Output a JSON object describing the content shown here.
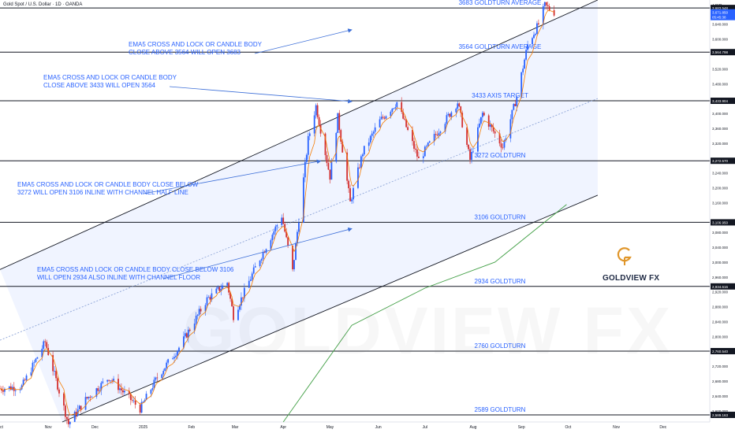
{
  "header": {
    "title": "Gold Spot / U.S. Dollar · 1D · OANDA",
    "currency": "USD"
  },
  "watermark": "GOLDVIEW FX",
  "logo": {
    "text": "GOLDVIEW FX",
    "color": "#e0962a"
  },
  "chart_data": {
    "type": "line",
    "title": "Gold Spot / U.S. Dollar · 1D · OANDA",
    "ylabel": "USD",
    "ylim": [
      2570,
      3705
    ],
    "xlim": [
      "2024-10-01",
      "2025-12-31"
    ],
    "x_ticks": [
      {
        "date": "2024-10-01",
        "label": "Oct"
      },
      {
        "date": "2024-11-01",
        "label": "Nov"
      },
      {
        "date": "2024-12-01",
        "label": "Dec"
      },
      {
        "date": "2025-01-01",
        "label": "2025"
      },
      {
        "date": "2025-02-01",
        "label": "Feb"
      },
      {
        "date": "2025-03-01",
        "label": "Mar"
      },
      {
        "date": "2025-04-01",
        "label": "Apr"
      },
      {
        "date": "2025-05-01",
        "label": "May"
      },
      {
        "date": "2025-06-01",
        "label": "Jun"
      },
      {
        "date": "2025-07-01",
        "label": "Jul"
      },
      {
        "date": "2025-08-01",
        "label": "Aug"
      },
      {
        "date": "2025-09-01",
        "label": "Sep"
      },
      {
        "date": "2025-10-01",
        "label": "Oct"
      },
      {
        "date": "2025-11-01",
        "label": "Nov"
      },
      {
        "date": "2025-12-01",
        "label": "Dec"
      }
    ],
    "y_ticks": [
      {
        "value": 2600,
        "label": "2,600.000"
      },
      {
        "value": 2640,
        "label": "2,640.000"
      },
      {
        "value": 2680,
        "label": "2,680.000"
      },
      {
        "value": 2720,
        "label": "2,720.000"
      },
      {
        "value": 2800,
        "label": "2,800.000"
      },
      {
        "value": 2840,
        "label": "2,840.000"
      },
      {
        "value": 2880,
        "label": "2,880.000"
      },
      {
        "value": 2920,
        "label": "2,920.000"
      },
      {
        "value": 2960,
        "label": "2,960.000"
      },
      {
        "value": 3000,
        "label": "3,000.000"
      },
      {
        "value": 3040,
        "label": "3,040.000"
      },
      {
        "value": 3080,
        "label": "3,080.000"
      },
      {
        "value": 3160,
        "label": "3,160.000"
      },
      {
        "value": 3200,
        "label": "3,200.000"
      },
      {
        "value": 3240,
        "label": "3,240.000"
      },
      {
        "value": 3320,
        "label": "3,320.000"
      },
      {
        "value": 3360,
        "label": "3,360.000"
      },
      {
        "value": 3400,
        "label": "3,400.000"
      },
      {
        "value": 3480,
        "label": "3,480.000"
      },
      {
        "value": 3520,
        "label": "3,520.000"
      },
      {
        "value": 3600,
        "label": "3,600.000"
      },
      {
        "value": 3640,
        "label": "3,640.000"
      }
    ],
    "levels": [
      {
        "value": 3683.548,
        "axis_label": "3,683.548",
        "name": "3683 GOLDTURN AVERAGE"
      },
      {
        "value": 3564.798,
        "axis_label": "3,564.798",
        "name": "3564 GOLDTURN AVERAGE"
      },
      {
        "value": 3433.904,
        "axis_label": "3,433.904",
        "name": "3433 AXIS TARGET"
      },
      {
        "value": 3272.57,
        "axis_label": "3,272.570",
        "name": "3272 GOLDTURN"
      },
      {
        "value": 3106.95,
        "axis_label": "3,106.950",
        "name": "3106 GOLDTURN"
      },
      {
        "value": 2934.616,
        "axis_label": "2,934.616",
        "name": "2934 GOLDTURN"
      },
      {
        "value": 2760.54,
        "axis_label": "2,760.540",
        "name": "2760 GOLDTURN"
      },
      {
        "value": 2589.163,
        "axis_label": "2,589.163",
        "name": "2589 GOLDTURN"
      }
    ],
    "last_price": {
      "value": 3671.85,
      "label": "3,671.850",
      "countdown": "05:45:38",
      "color": "#2962ff"
    },
    "annotations": [
      {
        "text": [
          "EMA5 CROSS AND LOCK OR CANDLE BODY",
          "CLOSE ABOVE 3564 WILL OPEN 3683"
        ],
        "arrow_to": {
          "date": "2025-05-15",
          "value": 3625
        }
      },
      {
        "text": [
          "EMA5 CROSS AND LOCK OR CANDLE BODY",
          "CLOSE ABOVE 3433 WILL OPEN 3564"
        ],
        "arrow_to": {
          "date": "2025-05-15",
          "value": 3432
        }
      },
      {
        "text": [
          "EMA5 CROSS AND LOCK OR CANDLE BODY CLOSE BELOW",
          "3272 WILL OPEN 3106 INLINE WITH CHANNEL HALF LINE"
        ],
        "arrow_to": {
          "date": "2025-04-25",
          "value": 3272
        }
      },
      {
        "text": [
          "EMA5 CROSS AND LOCK OR CANDLE BODY CLOSE BELOW 3106",
          "WILL OPEN 2934 ALSO INLINE WITH CHANNEL FLOOR"
        ],
        "arrow_to": {
          "date": "2025-05-15",
          "value": 3090
        }
      }
    ],
    "channel": {
      "upper": [
        {
          "date": "2024-10-01",
          "value": 2980
        },
        {
          "date": "2025-10-20",
          "value": 3705
        }
      ],
      "mid": [
        {
          "date": "2024-10-01",
          "value": 2790
        },
        {
          "date": "2025-10-20",
          "value": 3440
        }
      ],
      "lower": [
        {
          "date": "2024-11-10",
          "value": 2570
        },
        {
          "date": "2025-10-20",
          "value": 3180
        }
      ]
    },
    "candle_colors": {
      "up": "#2962ff",
      "down": "#d32f2f"
    },
    "ema_color": "#f57c00",
    "sma_color": "#43a047",
    "close_series": [
      {
        "date": "2024-10-01",
        "close": 2660
      },
      {
        "date": "2024-10-15",
        "close": 2665
      },
      {
        "date": "2024-10-30",
        "close": 2785
      },
      {
        "date": "2024-11-14",
        "close": 2565
      },
      {
        "date": "2024-11-25",
        "close": 2630
      },
      {
        "date": "2024-12-10",
        "close": 2690
      },
      {
        "date": "2024-12-30",
        "close": 2605
      },
      {
        "date": "2025-01-10",
        "close": 2690
      },
      {
        "date": "2025-01-24",
        "close": 2770
      },
      {
        "date": "2025-02-11",
        "close": 2900
      },
      {
        "date": "2025-02-24",
        "close": 2945
      },
      {
        "date": "2025-02-28",
        "close": 2855
      },
      {
        "date": "2025-03-14",
        "close": 2985
      },
      {
        "date": "2025-03-31",
        "close": 3125
      },
      {
        "date": "2025-04-07",
        "close": 2975
      },
      {
        "date": "2025-04-17",
        "close": 3330
      },
      {
        "date": "2025-04-22",
        "close": 3420
      },
      {
        "date": "2025-05-01",
        "close": 3230
      },
      {
        "date": "2025-05-06",
        "close": 3390
      },
      {
        "date": "2025-05-14",
        "close": 3160
      },
      {
        "date": "2025-05-22",
        "close": 3295
      },
      {
        "date": "2025-06-02",
        "close": 3380
      },
      {
        "date": "2025-06-13",
        "close": 3430
      },
      {
        "date": "2025-06-27",
        "close": 3275
      },
      {
        "date": "2025-07-22",
        "close": 3430
      },
      {
        "date": "2025-07-30",
        "close": 3275
      },
      {
        "date": "2025-08-07",
        "close": 3400
      },
      {
        "date": "2025-08-20",
        "close": 3310
      },
      {
        "date": "2025-08-29",
        "close": 3445
      },
      {
        "date": "2025-09-05",
        "close": 3585
      },
      {
        "date": "2025-09-12",
        "close": 3640
      },
      {
        "date": "2025-09-16",
        "close": 3690
      },
      {
        "date": "2025-09-22",
        "close": 3672
      }
    ],
    "sma_series": [
      {
        "date": "2025-04-01",
        "value": 2570
      },
      {
        "date": "2025-05-15",
        "value": 2830
      },
      {
        "date": "2025-07-01",
        "value": 2930
      },
      {
        "date": "2025-08-15",
        "value": 3000
      },
      {
        "date": "2025-09-30",
        "value": 3155
      }
    ]
  }
}
